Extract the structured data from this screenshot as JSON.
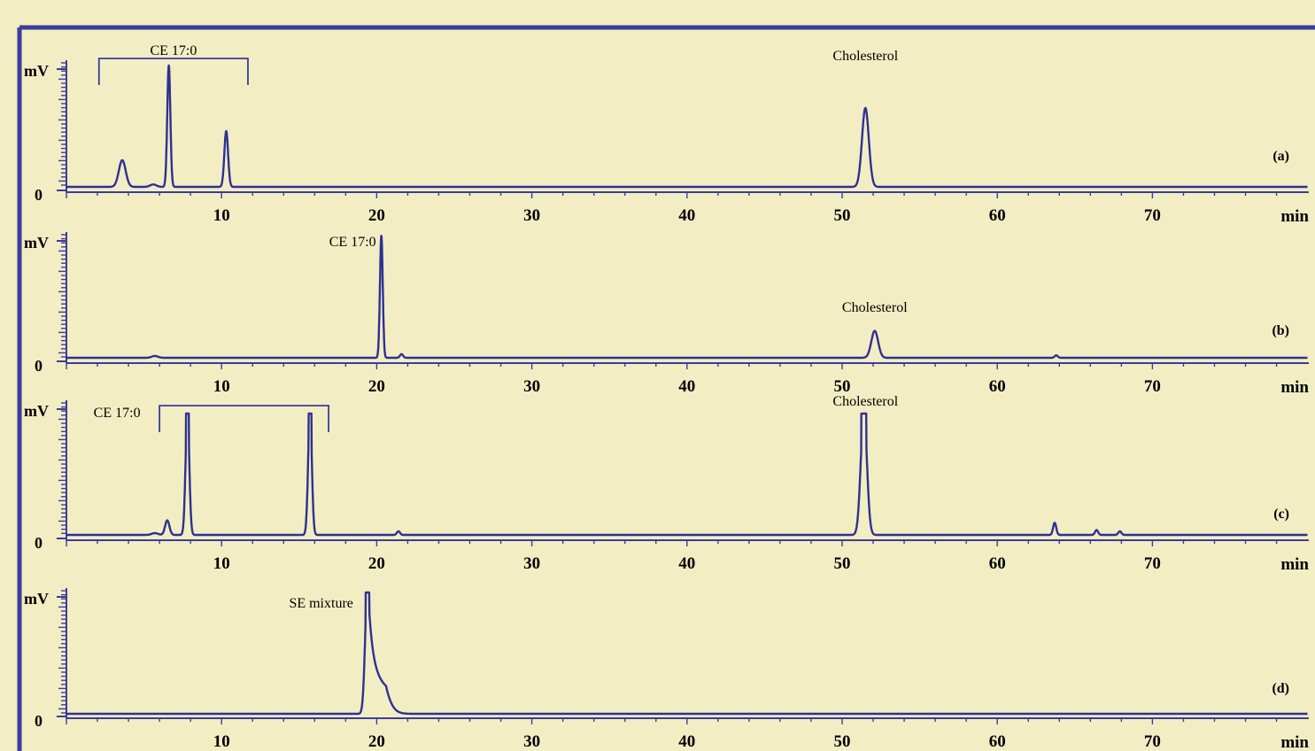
{
  "colors": {
    "background": "#f3edc4",
    "frame": "#3a3d9a",
    "trace": "#2e3192",
    "text": "#000000"
  },
  "chart_data": [
    {
      "type": "line",
      "panel_label": "(a)",
      "ylabel": "mV",
      "ytick_bottom": "0",
      "xlabel": "min",
      "xlim": [
        0,
        80
      ],
      "x_ticks": [
        10,
        20,
        30,
        40,
        50,
        60,
        70
      ],
      "ylim": [
        0,
        100
      ],
      "peaks": [
        {
          "x": 3.6,
          "height": 22,
          "width": 0.22
        },
        {
          "x": 5.6,
          "height": 2,
          "width": 0.2
        },
        {
          "x": 6.6,
          "height": 100,
          "width": 0.1
        },
        {
          "x": 10.3,
          "height": 46,
          "width": 0.12
        },
        {
          "x": 51.5,
          "height": 65,
          "width": 0.22
        }
      ],
      "annotations": [
        {
          "text": "CE 17:0",
          "bracket": [
            2.1,
            11.7
          ]
        },
        {
          "text": "Cholesterol",
          "x": 51.5
        }
      ]
    },
    {
      "type": "line",
      "panel_label": "(b)",
      "ylabel": "mV",
      "ytick_bottom": "0",
      "xlabel": "min",
      "xlim": [
        0,
        80
      ],
      "x_ticks": [
        10,
        20,
        30,
        40,
        50,
        60,
        70
      ],
      "ylim": [
        0,
        100
      ],
      "peaks": [
        {
          "x": 5.7,
          "height": 1.5,
          "width": 0.2
        },
        {
          "x": 20.3,
          "height": 100,
          "width": 0.09
        },
        {
          "x": 21.6,
          "height": 3,
          "width": 0.1
        },
        {
          "x": 52.1,
          "height": 22,
          "width": 0.22
        },
        {
          "x": 63.8,
          "height": 2,
          "width": 0.1
        }
      ],
      "annotations": [
        {
          "text": "CE 17:0",
          "x": 20.3
        },
        {
          "text": "Cholesterol",
          "x": 52.1
        }
      ]
    },
    {
      "type": "line",
      "panel_label": "(c)",
      "ylabel": "mV",
      "ytick_bottom": "0",
      "xlabel": "min",
      "xlim": [
        0,
        80
      ],
      "x_ticks": [
        10,
        20,
        30,
        40,
        50,
        60,
        70
      ],
      "ylim": [
        0,
        100
      ],
      "peaks": [
        {
          "x": 5.7,
          "height": 1.5,
          "width": 0.2
        },
        {
          "x": 6.5,
          "height": 12,
          "width": 0.14
        },
        {
          "x": 7.8,
          "height": 100,
          "width": 0.12,
          "flat_top": true
        },
        {
          "x": 15.7,
          "height": 100,
          "width": 0.12,
          "flat_top": true
        },
        {
          "x": 21.4,
          "height": 3,
          "width": 0.1
        },
        {
          "x": 51.4,
          "height": 100,
          "width": 0.2,
          "flat_top": true
        },
        {
          "x": 63.7,
          "height": 10,
          "width": 0.1
        },
        {
          "x": 66.4,
          "height": 4,
          "width": 0.1
        },
        {
          "x": 67.9,
          "height": 3,
          "width": 0.1
        }
      ],
      "annotations": [
        {
          "text": "CE 17:0",
          "bracket": [
            6.0,
            16.9
          ]
        },
        {
          "text": "Cholesterol",
          "x": 51.5
        }
      ]
    },
    {
      "type": "line",
      "panel_label": "(d)",
      "ylabel": "mV",
      "ytick_bottom": "0",
      "xlabel": "min",
      "xlim": [
        0,
        80
      ],
      "x_ticks": [
        10,
        20,
        30,
        40,
        50,
        60,
        70
      ],
      "ylim": [
        0,
        100
      ],
      "peaks": [
        {
          "x": 19.4,
          "height": 100,
          "width": 0.15,
          "flat_top": true,
          "tail": 0.55
        }
      ],
      "annotations": [
        {
          "text": "SE mixture",
          "x": 19.4
        }
      ]
    }
  ]
}
